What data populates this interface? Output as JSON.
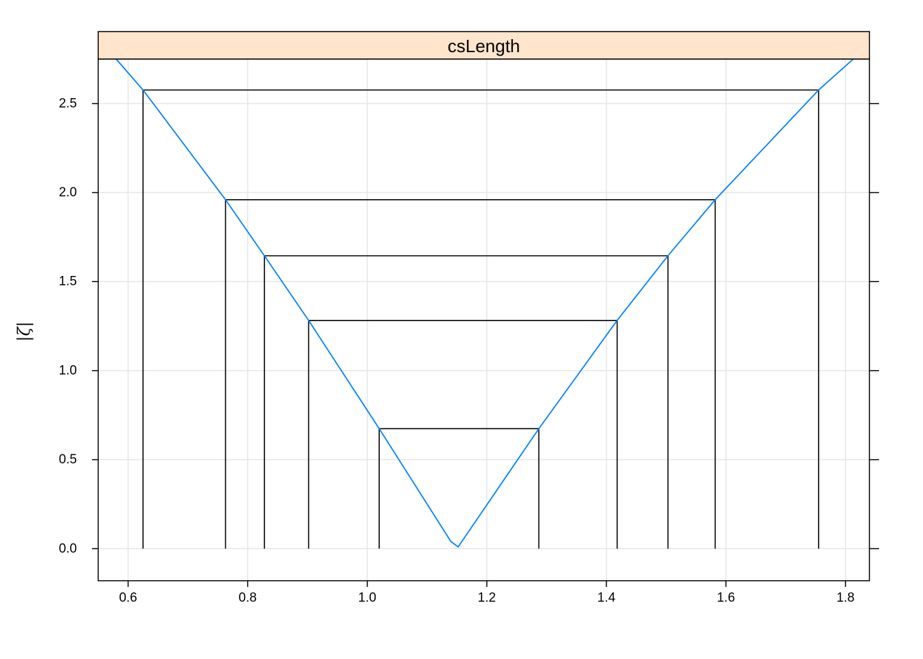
{
  "chart_data": {
    "type": "line",
    "title": "",
    "strip": "csLength",
    "xlabel": "",
    "ylabel": "|ζ|",
    "xlim": [
      0.55,
      1.84
    ],
    "ylim": [
      -0.18,
      2.75
    ],
    "grid": true,
    "x_ticks": [
      "0.6",
      "0.8",
      "1.0",
      "1.2",
      "1.4",
      "1.6",
      "1.8"
    ],
    "y_ticks": [
      "0.0",
      "0.5",
      "1.0",
      "1.5",
      "2.0",
      "2.5"
    ],
    "profile": {
      "x": [
        0.58,
        0.625,
        0.763,
        0.828,
        0.902,
        1.02,
        1.14,
        1.152,
        1.287,
        1.418,
        1.503,
        1.582,
        1.755,
        1.813
      ],
      "y": [
        2.75,
        2.576,
        1.96,
        1.645,
        1.282,
        0.674,
        0.04,
        0.01,
        0.674,
        1.282,
        1.645,
        1.96,
        2.576,
        2.75
      ]
    },
    "intervals": [
      {
        "level": 0.674,
        "lower": 1.02,
        "upper": 1.287
      },
      {
        "level": 1.282,
        "lower": 0.902,
        "upper": 1.418
      },
      {
        "level": 1.645,
        "lower": 0.828,
        "upper": 1.503
      },
      {
        "level": 1.96,
        "lower": 0.763,
        "upper": 1.582
      },
      {
        "level": 2.576,
        "lower": 0.625,
        "upper": 1.755
      }
    ],
    "colors": {
      "strip_bg": "#ffe5cc",
      "profile_line": "#0080ff",
      "grid": "#e6e6e6",
      "interval_lines": "#000000"
    }
  }
}
